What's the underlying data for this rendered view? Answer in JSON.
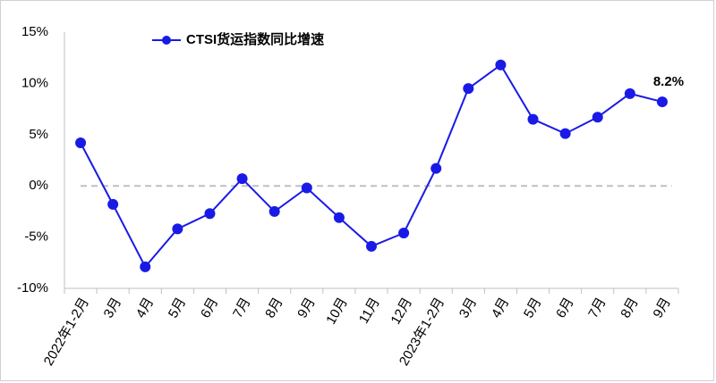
{
  "chart_data": {
    "type": "line",
    "categories": [
      "2022年1-2月",
      "3月",
      "4月",
      "5月",
      "6月",
      "7月",
      "8月",
      "9月",
      "10月",
      "11月",
      "12月",
      "2023年1-2月",
      "3月",
      "4月",
      "5月",
      "6月",
      "7月",
      "8月",
      "9月"
    ],
    "series": [
      {
        "name": "CTSI货运指数同比增速",
        "color": "#1a1ae6",
        "values": [
          4.2,
          -1.8,
          -7.9,
          -4.2,
          -2.7,
          0.7,
          -2.5,
          -0.2,
          -3.1,
          -5.9,
          -4.6,
          1.7,
          9.5,
          11.8,
          6.5,
          5.1,
          6.7,
          9.0,
          8.2
        ],
        "value_labels": [
          null,
          null,
          null,
          null,
          null,
          null,
          null,
          null,
          null,
          null,
          null,
          null,
          null,
          null,
          null,
          null,
          null,
          null,
          "8.2%"
        ]
      }
    ],
    "ylim": [
      -10,
      15
    ],
    "yticks": [
      {
        "value": -10,
        "label": "-10%"
      },
      {
        "value": -5,
        "label": "-5%"
      },
      {
        "value": 0,
        "label": "0%"
      },
      {
        "value": 5,
        "label": "5%"
      },
      {
        "value": 10,
        "label": "10%"
      },
      {
        "value": 15,
        "label": "15%"
      }
    ],
    "reference_line": 0,
    "legend": "top"
  }
}
